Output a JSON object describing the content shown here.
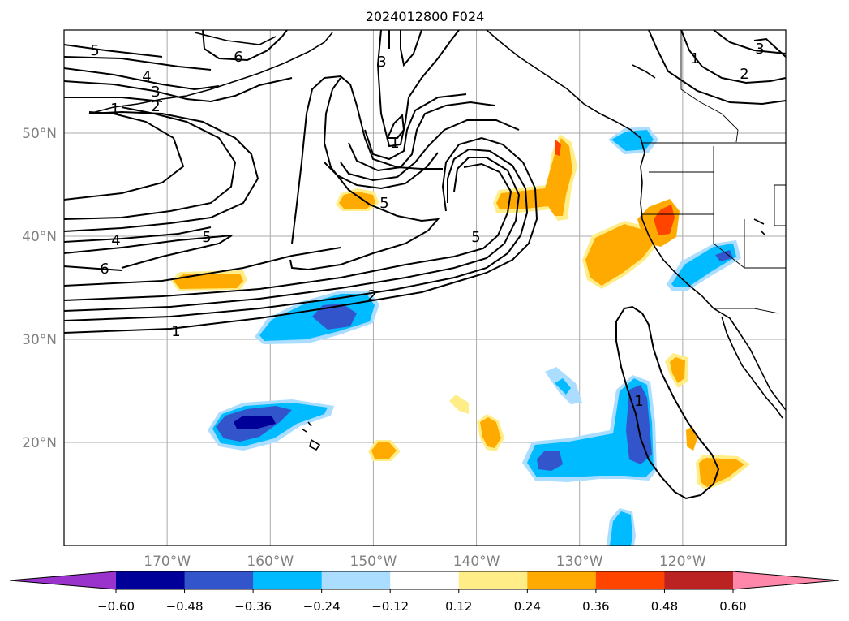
{
  "title": "2024012800 F024",
  "map": {
    "lon_range": [
      -180,
      -110
    ],
    "lat_range": [
      10,
      60
    ],
    "lon_ticks": [
      "170°W",
      "160°W",
      "150°W",
      "140°W",
      "130°W",
      "120°W"
    ],
    "lat_ticks": [
      "20°N",
      "30°N",
      "40°N",
      "50°N"
    ],
    "gridlines": true,
    "tick_label_color": "#808080"
  },
  "colorbar": {
    "orientation": "horizontal",
    "extend": "both",
    "tick_labels": [
      "−0.60",
      "−0.48",
      "−0.36",
      "−0.24",
      "−0.12",
      "0.12",
      "0.24",
      "0.36",
      "0.48",
      "0.60"
    ],
    "colors": [
      "#9933cc",
      "#000099",
      "#3355cc",
      "#00bbff",
      "#aaddff",
      "#ffffff",
      "#ffee88",
      "#ffaa00",
      "#ff4400",
      "#bb2222",
      "#ff88aa"
    ]
  },
  "contour_labels": [
    "5",
    "6",
    "4",
    "3",
    "1",
    "2",
    "3",
    "1",
    "5",
    "5",
    "4",
    "6",
    "5",
    "2",
    "1",
    "1",
    "1",
    "2",
    "3"
  ]
}
